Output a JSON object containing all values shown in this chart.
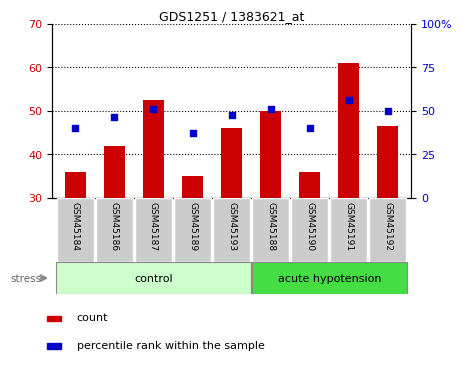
{
  "title": "GDS1251 / 1383621_at",
  "categories": [
    "GSM45184",
    "GSM45186",
    "GSM45187",
    "GSM45189",
    "GSM45193",
    "GSM45188",
    "GSM45190",
    "GSM45191",
    "GSM45192"
  ],
  "count_values": [
    36,
    42,
    52.5,
    35,
    46,
    50,
    36,
    61,
    46.5
  ],
  "percentile_values": [
    46,
    48.5,
    50.5,
    45,
    49,
    50.5,
    46,
    52.5,
    50
  ],
  "ylim_left": [
    30,
    70
  ],
  "ylim_right": [
    0,
    100
  ],
  "yticks_left": [
    30,
    40,
    50,
    60,
    70
  ],
  "yticks_right": [
    0,
    25,
    50,
    75,
    100
  ],
  "bar_color": "#cc0000",
  "dot_color": "#0000cc",
  "bar_width": 0.55,
  "group_bg_color_control": "#ccffcc",
  "group_bg_color_acute": "#44dd44",
  "tick_bg_color": "#cccccc",
  "legend_count_label": "count",
  "legend_percentile_label": "percentile rank within the sample",
  "ylabel_left_color": "#cc0000",
  "ylabel_right_color": "#0000cc"
}
